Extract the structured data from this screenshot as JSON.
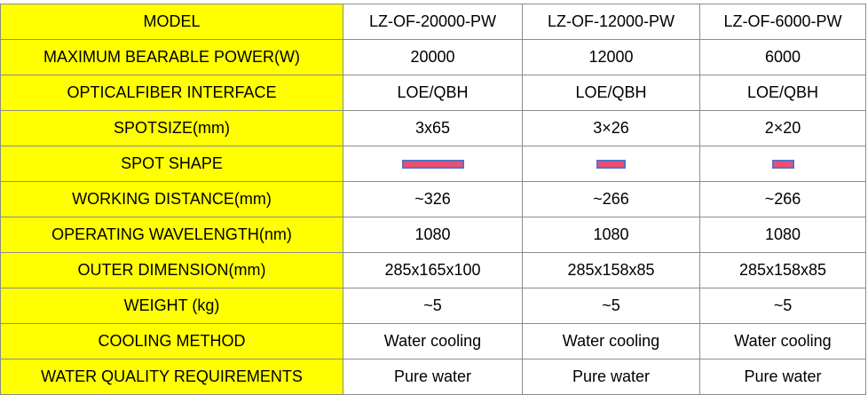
{
  "header": {
    "label": "MODEL",
    "models": [
      "LZ-OF-20000-PW",
      "LZ-OF-12000-PW",
      "LZ-OF-6000-PW"
    ]
  },
  "rows": [
    {
      "label": "MAXIMUM BEARABLE POWER(W)",
      "values": [
        "20000",
        "12000",
        "6000"
      ]
    },
    {
      "label": "OPTICALFIBER INTERFACE",
      "values": [
        "LOE/QBH",
        "LOE/QBH",
        "LOE/QBH"
      ]
    },
    {
      "label": "SPOTSIZE(mm)",
      "values": [
        "3x65",
        "3×26",
        "2×20"
      ]
    },
    {
      "label": "SPOT SHAPE",
      "spot_color": "#ec4f74",
      "spot_border_color": "#5274c7"
    },
    {
      "label": "WORKING DISTANCE(mm)",
      "values": [
        "~326",
        "~266",
        "~266"
      ]
    },
    {
      "label": "OPERATING WAVELENGTH(nm)",
      "values": [
        "1080",
        "1080",
        "1080"
      ]
    },
    {
      "label": "OUTER DIMENSION(mm)",
      "values": [
        "285x165x100",
        "285x158x85",
        "285x158x85"
      ]
    },
    {
      "label": "WEIGHT (kg)",
      "values": [
        "~5",
        "~5",
        "~5"
      ]
    },
    {
      "label": "COOLING METHOD",
      "values": [
        "Water cooling",
        "Water cooling",
        "Water cooling"
      ]
    },
    {
      "label": "WATER QUALITY REQUIREMENTS",
      "values": [
        "Pure water",
        "Pure water",
        "Pure water"
      ]
    }
  ],
  "colors": {
    "label_background": "#ffff00",
    "value_background": "#ffffff",
    "border": "#8c8c8c"
  }
}
